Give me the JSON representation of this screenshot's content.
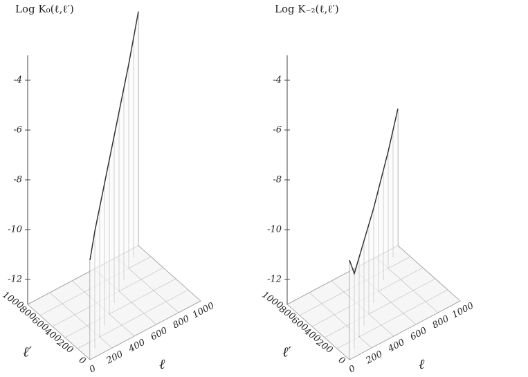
{
  "chart_data": [
    {
      "type": "surface3d",
      "title": "Log K₀(ℓ,ℓ′)",
      "xlabel": "ℓ",
      "ylabel": "ℓ′",
      "xlim": [
        0,
        1000
      ],
      "xticks": [
        0,
        200,
        400,
        600,
        800,
        1000
      ],
      "ylim": [
        0,
        1000
      ],
      "yticks": [
        0,
        200,
        400,
        600,
        800,
        1000
      ],
      "zlim": [
        -13,
        -3
      ],
      "zticks": [
        -12,
        -10,
        -8,
        -6,
        -4
      ],
      "x": [
        0,
        100,
        200,
        300,
        400,
        500,
        600,
        700,
        800,
        900,
        1000
      ],
      "values": [
        -9.0,
        -8.3,
        -7.8,
        -7.3,
        -6.8,
        -6.3,
        -5.8,
        -5.3,
        -4.8,
        -4.2,
        -3.6
      ],
      "color": "#333333"
    },
    {
      "type": "surface3d",
      "title": "Log K₋₂(ℓ,ℓ′)",
      "xlabel": "ℓ",
      "ylabel": "ℓ′",
      "xlim": [
        0,
        1000
      ],
      "xticks": [
        0,
        200,
        400,
        600,
        800,
        1000
      ],
      "ylim": [
        0,
        1000
      ],
      "yticks": [
        0,
        200,
        400,
        600,
        800,
        1000
      ],
      "zlim": [
        -13,
        -3
      ],
      "zticks": [
        -12,
        -10,
        -8,
        -6,
        -4
      ],
      "x": [
        0,
        100,
        200,
        300,
        400,
        500,
        600,
        700,
        800,
        900,
        1000
      ],
      "values": [
        -9.0,
        -10.0,
        -9.8,
        -9.6,
        -9.4,
        -9.2,
        -8.9,
        -8.6,
        -8.3,
        -7.9,
        -7.5
      ],
      "color": "#333333"
    }
  ]
}
